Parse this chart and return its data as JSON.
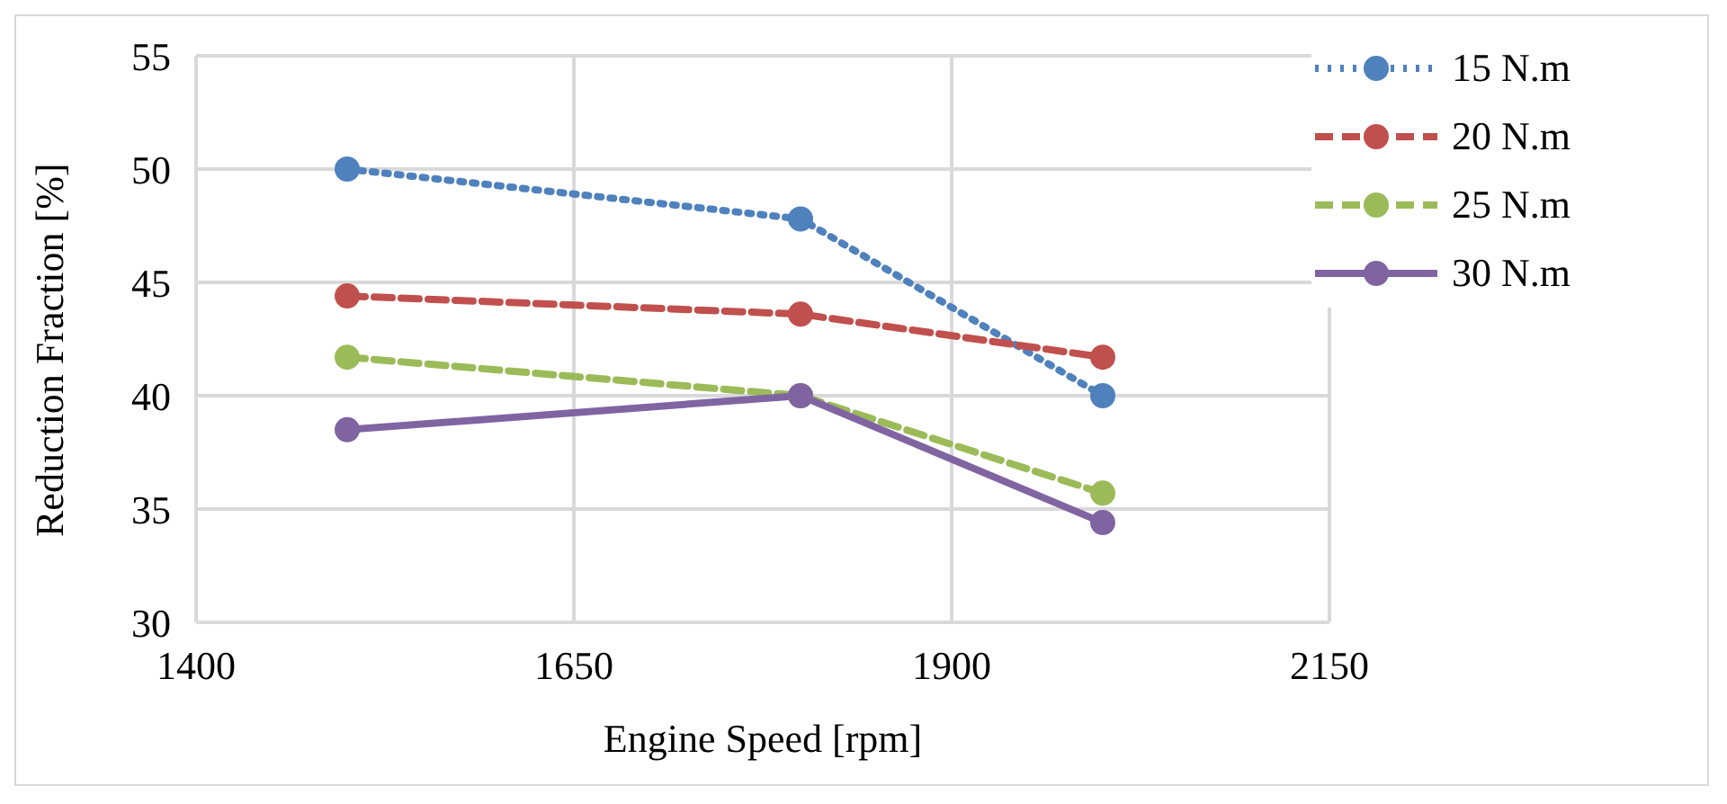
{
  "chart_data": {
    "type": "line",
    "xlabel": "Engine Speed [rpm]",
    "ylabel": "Reduction Fraction [%]",
    "x": [
      1500,
      1800,
      2000
    ],
    "series": [
      {
        "name": "15 N.m",
        "color": "#4f81bd",
        "values": [
          50,
          47.8,
          40
        ],
        "line_style": "dotted"
      },
      {
        "name": "20 N.m",
        "color": "#c0504d",
        "values": [
          44.4,
          43.6,
          41.7
        ],
        "line_style": "dashed"
      },
      {
        "name": "25 N.m",
        "color": "#9bbb59",
        "values": [
          41.7,
          40,
          35.7
        ],
        "line_style": "dashed"
      },
      {
        "name": "30 N.m",
        "color": "#8064a2",
        "values": [
          38.5,
          40,
          34.4
        ],
        "line_style": "solid"
      }
    ],
    "xlim": [
      1400,
      2150
    ],
    "xticks": [
      1400,
      1650,
      1900,
      2150
    ],
    "ylim": [
      30,
      55
    ],
    "yticks": [
      30,
      35,
      40,
      45,
      50,
      55
    ],
    "grid": true,
    "legend": "top right",
    "marker": "circle"
  }
}
